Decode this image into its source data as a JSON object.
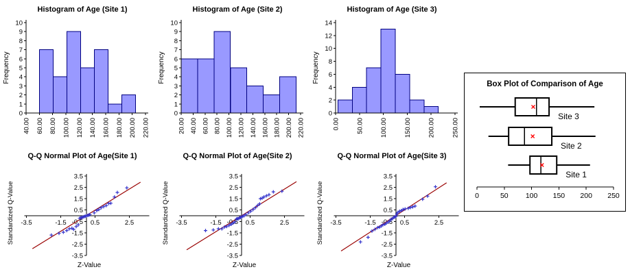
{
  "colors": {
    "bar_fill": "#9999FF",
    "bar_border": "#000080",
    "axis": "#000000",
    "qq_point": "#3333CC",
    "qq_line": "#990000",
    "mean_marker": "#FF0000",
    "frame": "#000000"
  },
  "chart_data": [
    {
      "type": "histogram",
      "title": "Histogram of Age (Site 1)",
      "ylabel": "Frequency",
      "x_min": 40,
      "x_max": 220,
      "x_ticks": [
        "40.00",
        "60.00",
        "80.00",
        "100.00",
        "120.00",
        "140.00",
        "160.00",
        "180.00",
        "200.00",
        "220.00"
      ],
      "y_ticks": [
        0,
        1,
        2,
        3,
        4,
        5,
        6,
        7,
        8,
        9,
        10
      ],
      "y_max": 10,
      "bins": {
        "start": 60,
        "width": 20.714
      },
      "values": [
        7,
        4,
        9,
        5,
        7,
        1,
        2
      ]
    },
    {
      "type": "histogram",
      "title": "Histogram of Age (Site 2)",
      "ylabel": "Frequency",
      "x_min": 20,
      "x_max": 220,
      "x_ticks": [
        "20.00",
        "40.00",
        "60.00",
        "80.00",
        "100.00",
        "120.00",
        "140.00",
        "160.00",
        "180.00",
        "200.00",
        "220.00"
      ],
      "y_ticks": [
        0,
        1,
        2,
        3,
        4,
        5,
        6,
        7,
        8,
        9,
        10
      ],
      "y_max": 10,
      "bins": {
        "start": 20,
        "width": 27.5
      },
      "values": [
        6,
        6,
        9,
        5,
        3,
        2,
        4
      ]
    },
    {
      "type": "histogram",
      "title": "Histogram of Age (Site 3)",
      "ylabel": "Frequency",
      "x_min": 0,
      "x_max": 250,
      "x_ticks": [
        "0.00",
        "50.00",
        "100.00",
        "150.00",
        "200.00",
        "250.00"
      ],
      "y_ticks": [
        0,
        2,
        4,
        6,
        8,
        10,
        12,
        14
      ],
      "y_max": 14,
      "bins": {
        "start": 5,
        "width": 30
      },
      "values": [
        2,
        4,
        7,
        13,
        6,
        2,
        1
      ]
    },
    {
      "type": "qq",
      "title": "Q-Q Normal Plot of Age(Site 1)",
      "xlabel": "Z-Value",
      "ylabel": "Standardized Q-Value",
      "x_tick_labels": [
        "-3.5",
        "-1.5",
        "0.5",
        "2.5"
      ],
      "y_tick_labels": [
        "3.5",
        "2.5",
        "1.5",
        "0.5",
        "-0.5",
        "-1.5",
        "-2.5",
        "-3.5"
      ],
      "axis_range": [
        -3.5,
        3.5
      ],
      "line": {
        "x1": -3.15,
        "y1": -2.9,
        "x2": 3.15,
        "y2": 2.95
      },
      "points": [
        [
          -2.05,
          -1.7
        ],
        [
          -1.6,
          -1.55
        ],
        [
          -1.35,
          -1.45
        ],
        [
          -1.15,
          -1.3
        ],
        [
          -1.0,
          -1.15
        ],
        [
          -0.85,
          -1.1
        ],
        [
          -0.75,
          -1.2
        ],
        [
          -0.6,
          -0.95
        ],
        [
          -0.48,
          -0.8
        ],
        [
          -0.4,
          -0.22
        ],
        [
          -0.33,
          -0.18
        ],
        [
          -0.27,
          -0.15
        ],
        [
          -0.2,
          -0.12
        ],
        [
          -0.13,
          -0.08
        ],
        [
          -0.07,
          -0.04
        ],
        [
          0.0,
          0.0
        ],
        [
          0.07,
          0.03
        ],
        [
          0.14,
          0.06
        ],
        [
          0.2,
          0.1
        ],
        [
          0.45,
          0.25
        ],
        [
          0.6,
          0.45
        ],
        [
          0.72,
          0.55
        ],
        [
          0.85,
          0.7
        ],
        [
          1.0,
          0.8
        ],
        [
          1.15,
          0.9
        ],
        [
          1.3,
          1.08
        ],
        [
          1.42,
          1.1
        ],
        [
          1.63,
          1.65
        ],
        [
          1.8,
          2.05
        ],
        [
          2.35,
          2.45
        ]
      ]
    },
    {
      "type": "qq",
      "title": "Q-Q Normal Plot of Age(Site 2)",
      "xlabel": "Z-Value",
      "ylabel": "Standardized Q-Value",
      "x_tick_labels": [
        "-3.5",
        "-1.5",
        "0.5",
        "2.5"
      ],
      "y_tick_labels": [
        "3.5",
        "2.5",
        "1.5",
        "0.5",
        "-0.5",
        "-1.5",
        "-2.5",
        "-3.5"
      ],
      "axis_range": [
        -3.5,
        3.5
      ],
      "line": {
        "x1": -3.2,
        "y1": -3.0,
        "x2": 3.2,
        "y2": 3.0
      },
      "points": [
        [
          -2.1,
          -1.3
        ],
        [
          -1.65,
          -1.25
        ],
        [
          -1.35,
          -1.15
        ],
        [
          -1.15,
          -1.15
        ],
        [
          -1.0,
          -1.0
        ],
        [
          -0.87,
          -0.95
        ],
        [
          -0.73,
          -0.85
        ],
        [
          -0.6,
          -0.75
        ],
        [
          -0.5,
          -0.65
        ],
        [
          -0.4,
          -0.55
        ],
        [
          -0.3,
          -0.3
        ],
        [
          -0.25,
          -0.25
        ],
        [
          -0.2,
          -0.28
        ],
        [
          -0.13,
          -0.2
        ],
        [
          -0.07,
          -0.15
        ],
        [
          0.0,
          -0.1
        ],
        [
          0.07,
          -0.05
        ],
        [
          0.15,
          0.0
        ],
        [
          0.25,
          0.1
        ],
        [
          0.4,
          0.25
        ],
        [
          0.53,
          0.4
        ],
        [
          0.67,
          0.55
        ],
        [
          0.8,
          0.7
        ],
        [
          0.93,
          0.9
        ],
        [
          1.05,
          1.05
        ],
        [
          1.1,
          1.5
        ],
        [
          1.2,
          1.55
        ],
        [
          1.3,
          1.65
        ],
        [
          1.45,
          1.75
        ],
        [
          1.6,
          1.85
        ],
        [
          1.85,
          2.1
        ],
        [
          2.35,
          2.15
        ]
      ]
    },
    {
      "type": "qq",
      "title": "Q-Q Normal Plot of Age(Site 3)",
      "xlabel": "Z-Value",
      "ylabel": "Standardized Q-Value",
      "x_tick_labels": [
        "-3.5",
        "-1.5",
        "0.5",
        "2.5"
      ],
      "y_tick_labels": [
        "3.5",
        "2.5",
        "1.5",
        "0.5",
        "-0.5",
        "-1.5",
        "-2.5",
        "-3.5"
      ],
      "axis_range": [
        -3.5,
        3.5
      ],
      "line": {
        "x1": -3.2,
        "y1": -3.1,
        "x2": 2.95,
        "y2": 2.9
      },
      "points": [
        [
          -2.07,
          -2.3
        ],
        [
          -1.63,
          -1.9
        ],
        [
          -1.4,
          -1.35
        ],
        [
          -1.23,
          -1.2
        ],
        [
          -1.07,
          -1.05
        ],
        [
          -0.96,
          -1.0
        ],
        [
          -0.85,
          -0.9
        ],
        [
          -0.76,
          -0.8
        ],
        [
          -0.65,
          -0.75
        ],
        [
          -0.56,
          -0.65
        ],
        [
          -0.45,
          -0.55
        ],
        [
          -0.36,
          -0.45
        ],
        [
          -0.28,
          -0.3
        ],
        [
          -0.2,
          -0.25
        ],
        [
          -0.13,
          -0.15
        ],
        [
          -0.07,
          -0.1
        ],
        [
          0.0,
          -0.05
        ],
        [
          0.05,
          0.15
        ],
        [
          0.11,
          0.3
        ],
        [
          0.21,
          0.4
        ],
        [
          0.31,
          0.45
        ],
        [
          0.41,
          0.55
        ],
        [
          0.53,
          0.6
        ],
        [
          0.71,
          0.65
        ],
        [
          0.84,
          0.72
        ],
        [
          0.97,
          0.78
        ],
        [
          1.11,
          0.85
        ],
        [
          1.55,
          1.45
        ],
        [
          1.84,
          1.72
        ],
        [
          2.3,
          2.55
        ]
      ]
    },
    {
      "type": "box",
      "title": "Box Plot of Comparison of Age",
      "axis_ticks": [
        "0",
        "50",
        "100",
        "150",
        "200",
        "250"
      ],
      "axis_range": [
        0,
        250
      ],
      "series": [
        {
          "label": "Site 3",
          "min": 5,
          "q1": 70,
          "median": 109,
          "q3": 132,
          "max": 215,
          "mean": 103
        },
        {
          "label": "Site 2",
          "min": 21,
          "q1": 58,
          "median": 87,
          "q3": 137,
          "max": 217,
          "mean": 102
        },
        {
          "label": "Site 1",
          "min": 57,
          "q1": 97,
          "median": 117,
          "q3": 146,
          "max": 207,
          "mean": 119
        }
      ]
    }
  ]
}
